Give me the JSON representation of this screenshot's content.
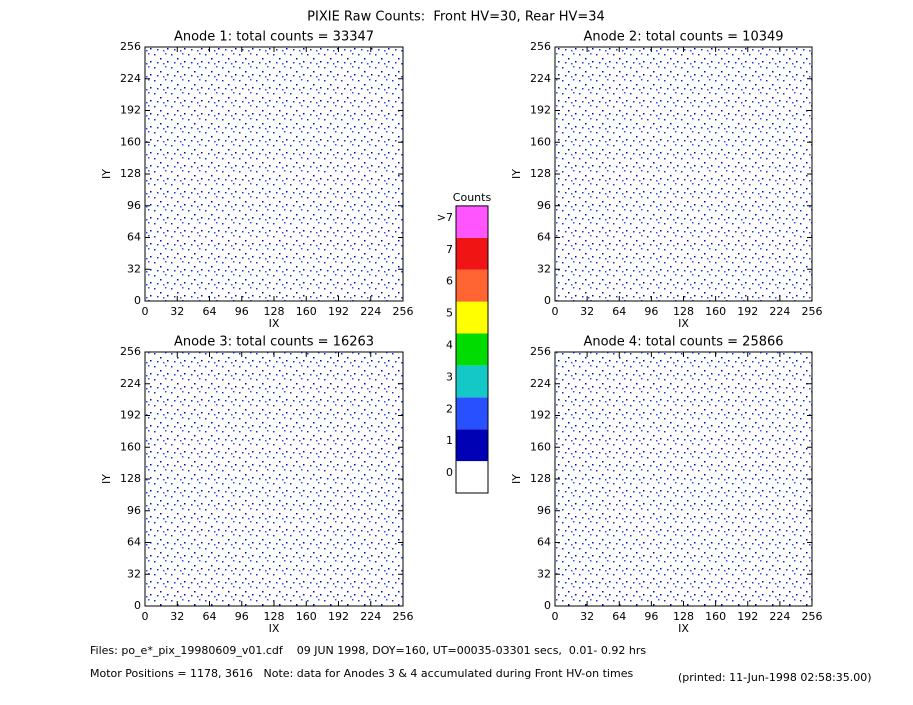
{
  "title": "PIXIE Raw Counts:  Front HV=30, Rear HV=34",
  "chart_data": [
    {
      "type": "heatmap",
      "title": "Anode 1: total counts = 33347",
      "xlabel": "IX",
      "ylabel": "IY",
      "xlim": [
        0,
        256
      ],
      "ylim": [
        0,
        256
      ],
      "xticks": [
        0,
        32,
        64,
        96,
        128,
        160,
        192,
        224,
        256
      ],
      "yticks": [
        0,
        32,
        64,
        96,
        128,
        160,
        192,
        224,
        256
      ]
    },
    {
      "type": "heatmap",
      "title": "Anode 2: total counts = 10349",
      "xlabel": "IX",
      "ylabel": "IY",
      "xlim": [
        0,
        256
      ],
      "ylim": [
        0,
        256
      ],
      "xticks": [
        0,
        32,
        64,
        96,
        128,
        160,
        192,
        224,
        256
      ],
      "yticks": [
        0,
        32,
        64,
        96,
        128,
        160,
        192,
        224,
        256
      ]
    },
    {
      "type": "heatmap",
      "title": "Anode 3: total counts = 16263",
      "xlabel": "IX",
      "ylabel": "IY",
      "xlim": [
        0,
        256
      ],
      "ylim": [
        0,
        256
      ],
      "xticks": [
        0,
        32,
        64,
        96,
        128,
        160,
        192,
        224,
        256
      ],
      "yticks": [
        0,
        32,
        64,
        96,
        128,
        160,
        192,
        224,
        256
      ]
    },
    {
      "type": "heatmap",
      "title": "Anode 4: total counts = 25866",
      "xlabel": "IX",
      "ylabel": "IY",
      "xlim": [
        0,
        256
      ],
      "ylim": [
        0,
        256
      ],
      "xticks": [
        0,
        32,
        64,
        96,
        128,
        160,
        192,
        224,
        256
      ],
      "yticks": [
        0,
        32,
        64,
        96,
        128,
        160,
        192,
        224,
        256
      ]
    }
  ],
  "colorbar": {
    "title": "Counts",
    "labels": [
      "0",
      "1",
      "2",
      "3",
      "4",
      "5",
      "6",
      "7",
      ">7"
    ],
    "colors": [
      "#ffffff",
      "#0000b4",
      "#2850ff",
      "#14c8c8",
      "#00dc00",
      "#ffff00",
      "#ff6432",
      "#f01414",
      "#ff55ff"
    ]
  },
  "footer": {
    "files": "Files: po_e*_pix_19980609_v01.cdf    09 JUN 1998, DOY=160, UT=00035-03301 secs,  0.01- 0.92 hrs",
    "motor": "Motor Positions = 1178, 3616   Note: data for Anodes 3 & 4 accumulated during Front HV-on times",
    "printed": "(printed: 11-Jun-1998 02:58:35.00)"
  }
}
